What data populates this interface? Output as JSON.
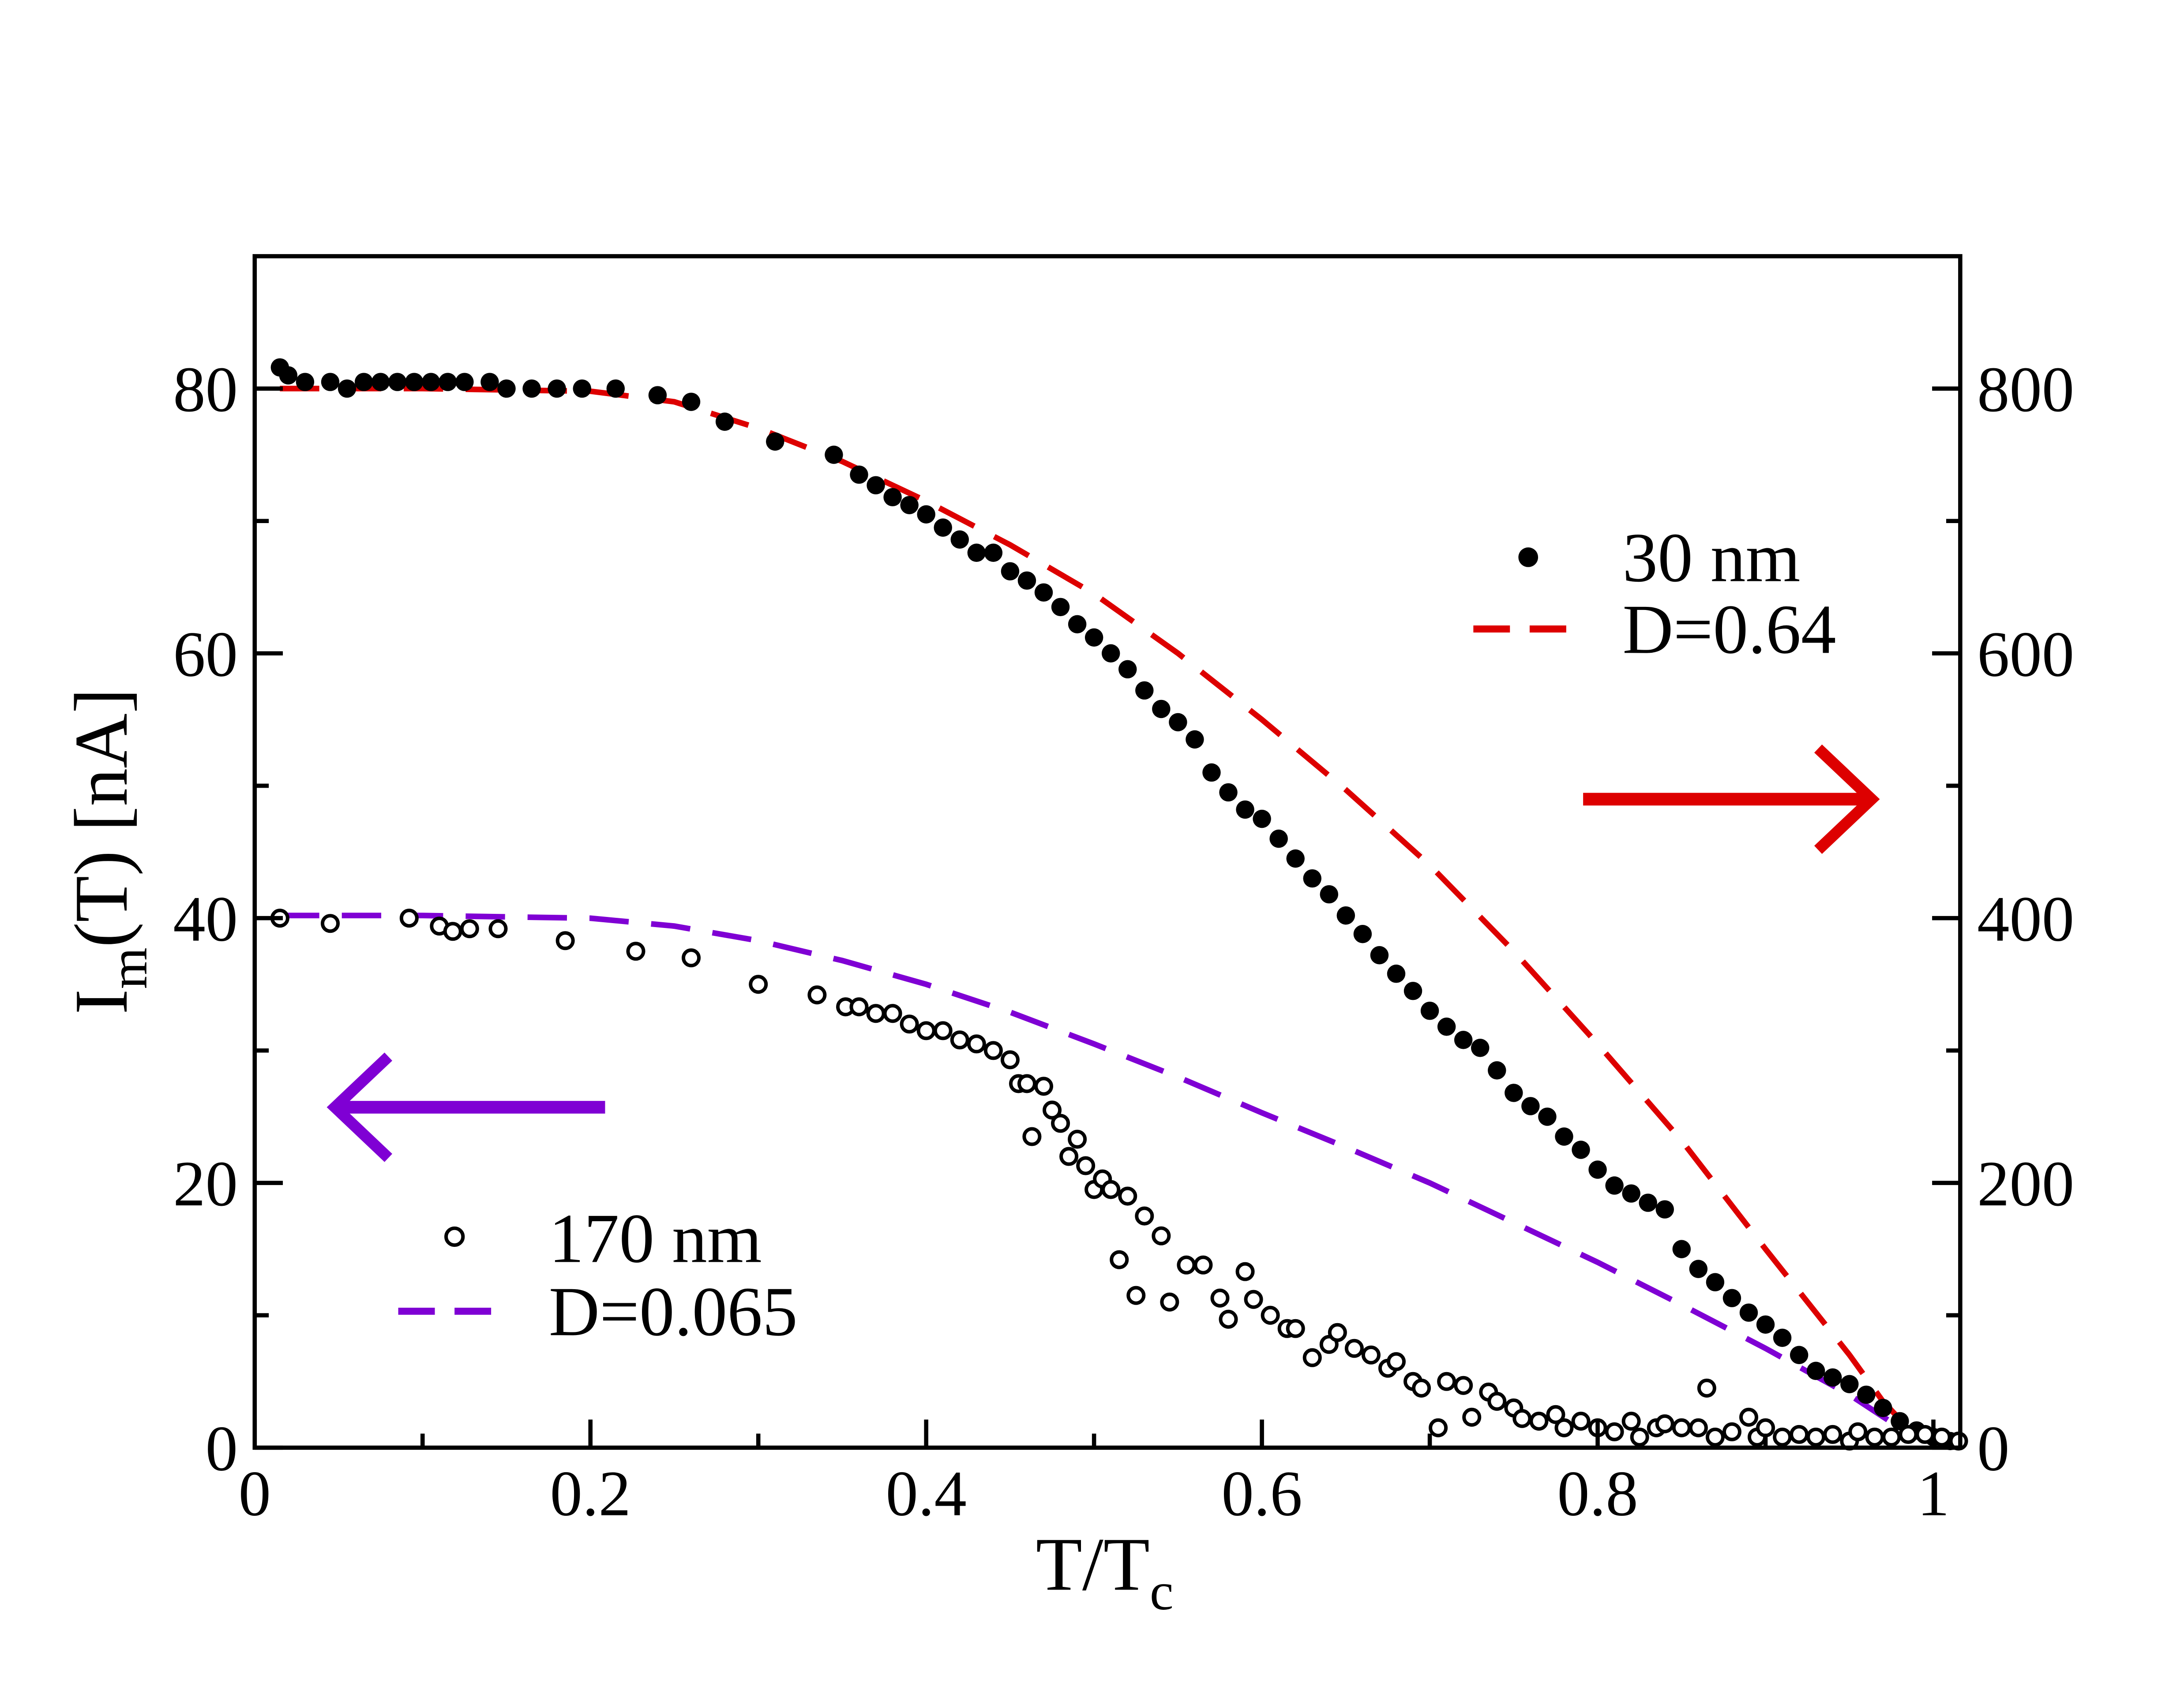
{
  "chart_data": {
    "type": "scatter",
    "title": "",
    "xlabel": "T/T",
    "xlabel_sub": "c",
    "ylabel_main": "I",
    "ylabel_sub": "m",
    "ylabel_rest": "(T) [nA]",
    "xlim": [
      0,
      1.016
    ],
    "ylim_left": [
      0,
      90
    ],
    "ylim_right": [
      0,
      900
    ],
    "grid": false,
    "x_ticks": [
      "0",
      "0.2",
      "0.4",
      "0.6",
      "0.8",
      "1"
    ],
    "x_tick_values": [
      0,
      0.2,
      0.4,
      0.6,
      0.8,
      1.0
    ],
    "y_left_ticks": [
      "0",
      "20",
      "40",
      "60",
      "80"
    ],
    "y_left_tick_values": [
      0,
      20,
      40,
      60,
      80
    ],
    "y_right_ticks": [
      "0",
      "200",
      "400",
      "600",
      "800"
    ],
    "y_right_tick_values": [
      0,
      200,
      400,
      600,
      800
    ],
    "colors": {
      "red": "#dd0000",
      "purple": "#7f00d4",
      "black": "#000000"
    },
    "legends": [
      {
        "position": "top-right",
        "entries": [
          "30 nm",
          "D=0.64"
        ]
      },
      {
        "position": "bottom-left",
        "entries": [
          "170 nm",
          "D=0.065"
        ]
      }
    ],
    "annotations": [
      {
        "type": "arrow",
        "direction": "right",
        "meaning": "30 nm data on right axis",
        "color": "#dd0000"
      },
      {
        "type": "arrow",
        "direction": "left",
        "meaning": "170 nm data on left axis",
        "color": "#7f00d4"
      }
    ],
    "series": [
      {
        "name": "30 nm",
        "axis": "right",
        "style": "filled-circle",
        "color": "#000000",
        "x": [
          0.015,
          0.02,
          0.03,
          0.045,
          0.055,
          0.065,
          0.075,
          0.085,
          0.095,
          0.105,
          0.115,
          0.125,
          0.14,
          0.15,
          0.165,
          0.18,
          0.195,
          0.215,
          0.24,
          0.26,
          0.28,
          0.31,
          0.345,
          0.36,
          0.37,
          0.38,
          0.39,
          0.4,
          0.41,
          0.42,
          0.43,
          0.44,
          0.45,
          0.46,
          0.47,
          0.48,
          0.49,
          0.5,
          0.51,
          0.52,
          0.53,
          0.54,
          0.55,
          0.56,
          0.57,
          0.58,
          0.59,
          0.6,
          0.61,
          0.62,
          0.63,
          0.64,
          0.65,
          0.66,
          0.67,
          0.68,
          0.69,
          0.7,
          0.71,
          0.72,
          0.73,
          0.74,
          0.75,
          0.76,
          0.77,
          0.78,
          0.79,
          0.8,
          0.81,
          0.82,
          0.83,
          0.84,
          0.85,
          0.86,
          0.87,
          0.88,
          0.89,
          0.9,
          0.91,
          0.92,
          0.93,
          0.94,
          0.95,
          0.96,
          0.97,
          0.98,
          0.99,
          1.0,
          1.01
        ],
        "y": [
          816,
          810,
          805,
          805,
          800,
          805,
          805,
          805,
          805,
          805,
          805,
          805,
          805,
          800,
          800,
          800,
          800,
          800,
          795,
          790,
          775,
          760,
          750,
          735,
          727,
          718,
          712,
          705,
          695,
          686,
          676,
          676,
          662,
          655,
          646,
          635,
          622,
          612,
          600,
          588,
          572,
          558,
          548,
          535,
          510,
          495,
          482,
          475,
          460,
          445,
          430,
          418,
          402,
          388,
          372,
          358,
          345,
          330,
          318,
          308,
          302,
          285,
          268,
          258,
          250,
          235,
          225,
          210,
          198,
          192,
          185,
          180,
          150,
          135,
          125,
          113,
          102,
          93,
          83,
          70,
          58,
          53,
          48,
          40,
          30,
          20,
          13,
          8,
          5
        ]
      },
      {
        "name": "170 nm",
        "axis": "left",
        "style": "open-circle",
        "color": "#000000",
        "x": [
          0.015,
          0.045,
          0.092,
          0.11,
          0.118,
          0.128,
          0.145,
          0.185,
          0.227,
          0.26,
          0.3,
          0.335,
          0.352,
          0.36,
          0.37,
          0.38,
          0.39,
          0.4,
          0.41,
          0.42,
          0.43,
          0.44,
          0.45,
          0.455,
          0.46,
          0.47,
          0.463,
          0.475,
          0.48,
          0.49,
          0.485,
          0.495,
          0.5,
          0.505,
          0.51,
          0.515,
          0.52,
          0.525,
          0.53,
          0.54,
          0.545,
          0.555,
          0.565,
          0.575,
          0.58,
          0.59,
          0.595,
          0.605,
          0.615,
          0.62,
          0.63,
          0.64,
          0.645,
          0.655,
          0.665,
          0.675,
          0.68,
          0.69,
          0.695,
          0.705,
          0.71,
          0.72,
          0.725,
          0.735,
          0.74,
          0.75,
          0.755,
          0.765,
          0.775,
          0.78,
          0.79,
          0.8,
          0.81,
          0.82,
          0.825,
          0.835,
          0.84,
          0.85,
          0.86,
          0.865,
          0.87,
          0.88,
          0.89,
          0.895,
          0.9,
          0.91,
          0.92,
          0.93,
          0.94,
          0.95,
          0.955,
          0.965,
          0.975,
          0.985,
          0.995,
          1.005,
          1.015
        ],
        "y": [
          40,
          39.6,
          40,
          39.4,
          39,
          39.2,
          39.2,
          38.3,
          37.5,
          37,
          35,
          34.2,
          33.3,
          33.3,
          32.8,
          32.8,
          32,
          31.5,
          31.5,
          30.8,
          30.5,
          30,
          29.3,
          27.5,
          27.5,
          27.3,
          23.5,
          25.5,
          24.5,
          23.3,
          22,
          21.3,
          19.5,
          20.3,
          19.5,
          14.2,
          19,
          11.5,
          17.5,
          16,
          11,
          13.8,
          13.8,
          11.3,
          9.7,
          13.3,
          11.2,
          10,
          9,
          9,
          6.8,
          7.8,
          8.7,
          7.5,
          7,
          6,
          6.5,
          5,
          4.5,
          1.5,
          5,
          4.7,
          2.3,
          4.2,
          3.5,
          3,
          2.2,
          2,
          2.5,
          1.5,
          2,
          1.5,
          1.2,
          2,
          0.8,
          1.5,
          1.8,
          1.5,
          1.5,
          4.5,
          0.8,
          1.2,
          2.3,
          0.8,
          1.5,
          0.8,
          1,
          0.8,
          1,
          0.5,
          1.2,
          0.8,
          0.8,
          1,
          1,
          0.8,
          0.5
        ]
      },
      {
        "name": "D=0.64",
        "axis": "right",
        "style": "dashed-line",
        "color": "#dd0000",
        "x": [
          0.015,
          0.1,
          0.2,
          0.25,
          0.3,
          0.35,
          0.4,
          0.45,
          0.5,
          0.55,
          0.6,
          0.65,
          0.7,
          0.75,
          0.8,
          0.85,
          0.9,
          0.95,
          0.97,
          0.99
        ],
        "y": [
          800,
          800,
          798,
          790,
          770,
          745,
          715,
          682,
          645,
          600,
          550,
          497,
          440,
          375,
          305,
          232,
          150,
          70,
          35,
          8
        ]
      },
      {
        "name": "D=0.065",
        "axis": "left",
        "style": "dashed-line",
        "color": "#7f00d4",
        "x": [
          0.015,
          0.1,
          0.2,
          0.25,
          0.3,
          0.35,
          0.4,
          0.45,
          0.5,
          0.55,
          0.6,
          0.65,
          0.7,
          0.75,
          0.8,
          0.85,
          0.9,
          0.95,
          0.98
        ],
        "y": [
          40.2,
          40.2,
          40,
          39.4,
          38.3,
          36.8,
          35,
          32.9,
          30.5,
          28,
          25.3,
          22.7,
          20,
          17,
          14,
          10.8,
          7.5,
          4,
          1.5
        ]
      }
    ]
  }
}
